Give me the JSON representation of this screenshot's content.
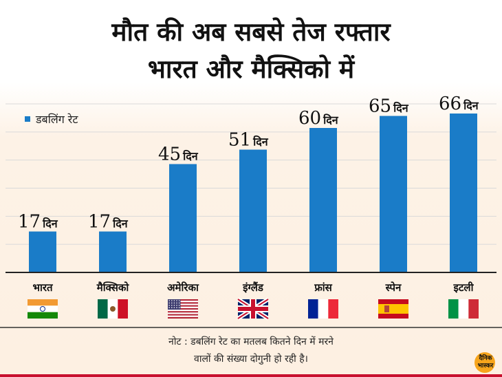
{
  "header": {
    "title_line1": "मौत की अब सबसे तेज रफ्तार",
    "title_line2": "भारत और मैक्सिको में"
  },
  "legend": {
    "label": "डबलिंग रेट"
  },
  "note": {
    "line1": "नोट : डबलिंग रेट का मतलब कितने दिन में मरने",
    "line2": "वालों की संख्या दोगुनी हो रही है।"
  },
  "logo": {
    "line1": "दैनिक",
    "line2": "भास्कर"
  },
  "colors": {
    "bar": "#1a7cc8",
    "axis": "#222222",
    "gridline": "#d9d9d9"
  },
  "chart_data": {
    "type": "bar",
    "categories": [
      "भारत",
      "मैक्सिको",
      "अमेरिका",
      "इंग्लैंड",
      "फ्रांस",
      "स्पेन",
      "इटली"
    ],
    "values": [
      17,
      17,
      45,
      51,
      60,
      65,
      66
    ],
    "unit": "दिन",
    "series": [
      {
        "name": "डबलिंग रेट",
        "values": [
          17,
          17,
          45,
          51,
          60,
          65,
          66
        ]
      }
    ],
    "ylim": [
      0,
      70
    ],
    "grid": true,
    "legend_position": "top-left",
    "flags": [
      "india-flag-icon",
      "mexico-flag-icon",
      "usa-flag-icon",
      "uk-flag-icon",
      "france-flag-icon",
      "spain-flag-icon",
      "italy-flag-icon"
    ]
  }
}
